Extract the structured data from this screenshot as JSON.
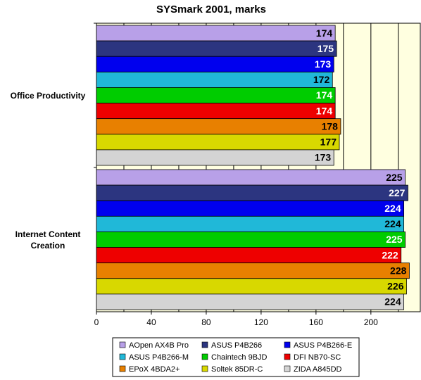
{
  "chart_data": {
    "type": "hbar",
    "title": "SYSmark 2001, marks",
    "categories": [
      "Office Productivity",
      "Internet Content Creation"
    ],
    "series": [
      {
        "name": "AOpen AX4B Pro",
        "color": "#b8a0e8",
        "values": [
          174,
          225
        ]
      },
      {
        "name": "ASUS P4B266",
        "color": "#2c3580",
        "values": [
          175,
          227
        ]
      },
      {
        "name": "ASUS P4B266-E",
        "color": "#0000ee",
        "values": [
          173,
          224
        ]
      },
      {
        "name": "ASUS P4B266-M",
        "color": "#20b8d8",
        "values": [
          172,
          224
        ]
      },
      {
        "name": "Chaintech 9BJD",
        "color": "#00cc00",
        "values": [
          174,
          225
        ]
      },
      {
        "name": "DFI NB70-SC",
        "color": "#ee0000",
        "values": [
          174,
          222
        ]
      },
      {
        "name": "EPoX 4BDA2+",
        "color": "#e88000",
        "values": [
          178,
          228
        ]
      },
      {
        "name": "Soltek 85DR-C",
        "color": "#d8d800",
        "values": [
          177,
          226
        ]
      },
      {
        "name": "ZIDA A845DD",
        "color": "#d4d4d4",
        "values": [
          173,
          224
        ]
      }
    ],
    "xlim": [
      0,
      236
    ],
    "xticks": [
      0,
      40,
      80,
      120,
      160,
      200
    ],
    "xminor": [
      20,
      60,
      100,
      140,
      180,
      220
    ],
    "grid": true,
    "plot_background": "#ffffe0"
  }
}
